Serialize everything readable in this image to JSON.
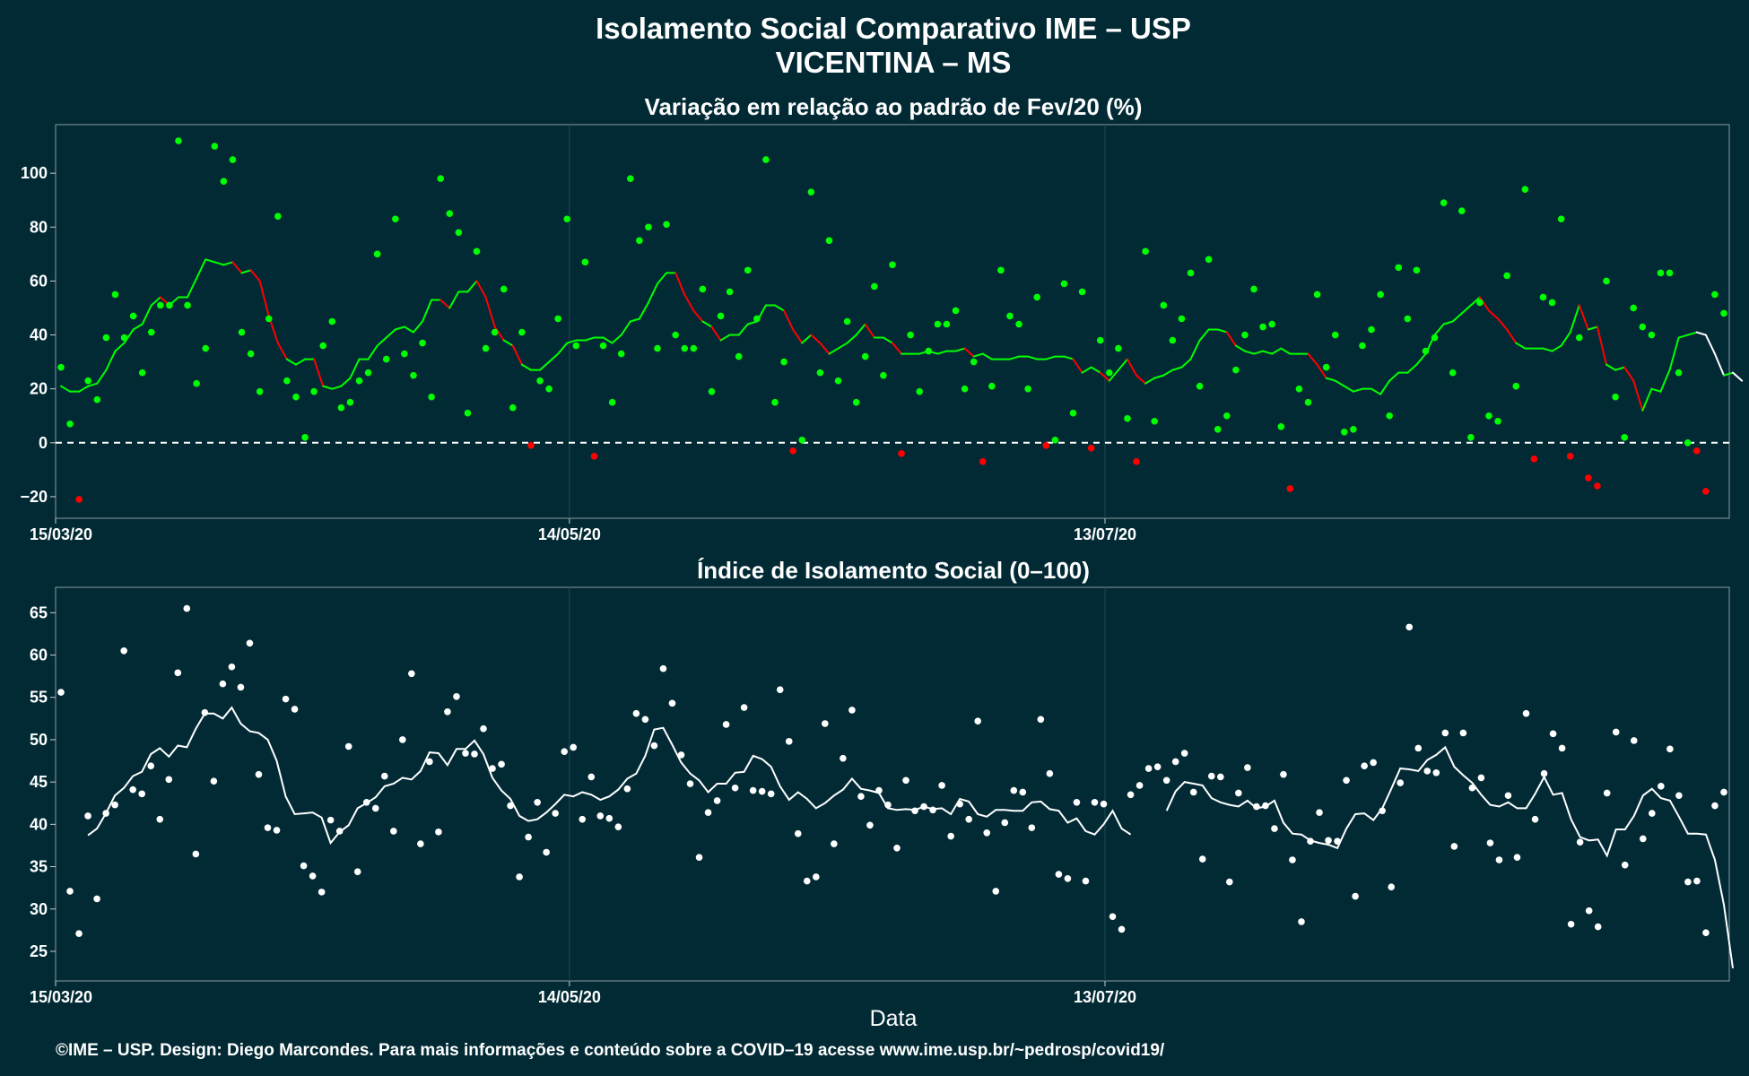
{
  "title_line1": "Isolamento Social Comparativo IME – USP",
  "title_line2": "VICENTINA – MS",
  "xlabel": "Data",
  "footer": "©IME – USP. Design: Diego Marcondes. Para mais informações e conteúdo sobre a COVID–19 acesse www.ime.usp.br/~pedrosp/covid19/",
  "colors": {
    "background": "#022a35",
    "positive": "#00ff00",
    "negative": "#ff0000",
    "index": "#ffffff"
  },
  "chart_data": [
    {
      "type": "scatter",
      "title": "Variação em relação ao padrão de Fev/20 (%)",
      "x_ticks": [
        "15/03/20",
        "14/05/20",
        "13/07/20"
      ],
      "y_ticks": [
        -20,
        0,
        20,
        40,
        60,
        80,
        100
      ],
      "ylim": [
        -28,
        118
      ],
      "x_start": "15/03/20",
      "x_end": "01/09/20",
      "reference_line": 0,
      "grid": true,
      "points": [
        28,
        7,
        -21,
        23,
        16,
        39,
        55,
        39,
        47,
        26,
        41,
        51,
        51,
        112,
        51,
        22,
        35,
        110,
        97,
        105,
        41,
        33,
        19,
        46,
        84,
        23,
        17,
        2,
        19,
        36,
        45,
        13,
        15,
        23,
        26,
        70,
        31,
        83,
        33,
        25,
        37,
        17,
        98,
        85,
        78,
        11,
        71,
        35,
        41,
        57,
        13,
        41,
        -1,
        23,
        20,
        46,
        83,
        36,
        67,
        -5,
        36,
        15,
        33,
        98,
        75,
        80,
        35,
        81,
        40,
        35,
        35,
        57,
        19,
        47,
        56,
        32,
        64,
        46,
        105,
        15,
        30,
        -3,
        1,
        93,
        26,
        75,
        23,
        45,
        15,
        32,
        58,
        25,
        66,
        -4,
        40,
        19,
        34,
        44,
        44,
        49,
        20,
        30,
        -7,
        21,
        64,
        47,
        44,
        20,
        54,
        -1,
        1,
        59,
        11,
        56,
        -2,
        38,
        26,
        35,
        9,
        -7,
        71,
        8,
        51,
        38,
        46,
        63,
        21,
        68,
        5,
        10,
        27,
        40,
        57,
        43,
        44,
        6,
        -17,
        20,
        15,
        55,
        28,
        40,
        4,
        5,
        36,
        42,
        55,
        10,
        65,
        46,
        64,
        34,
        39,
        89,
        26,
        86,
        2,
        52,
        10,
        8,
        62,
        21,
        94,
        -6,
        54,
        52,
        83,
        -5,
        39,
        -13,
        -16,
        60,
        17,
        2,
        50,
        43,
        40,
        63,
        63,
        26,
        0,
        -3,
        -18,
        55,
        48
      ],
      "moving_average": [
        21,
        19,
        19,
        21,
        22,
        27,
        34,
        37,
        42,
        44,
        51,
        54,
        51,
        54,
        54,
        61,
        68,
        67,
        66,
        67,
        63,
        64,
        60,
        47,
        37,
        31,
        29,
        31,
        31,
        21,
        20,
        21,
        24,
        31,
        31,
        36,
        39,
        42,
        43,
        41,
        45,
        53,
        53,
        50,
        56,
        56,
        60,
        54,
        43,
        38,
        36,
        29,
        27,
        27,
        30,
        33,
        37,
        38,
        38,
        39,
        39,
        37,
        40,
        45,
        46,
        52,
        59,
        63,
        63,
        55,
        49,
        45,
        43,
        38,
        40,
        40,
        44,
        45,
        51,
        51,
        49,
        42,
        37,
        40,
        37,
        33,
        35,
        37,
        40,
        44,
        39,
        39,
        37,
        33,
        33,
        33,
        34,
        33,
        34,
        34,
        35,
        32,
        33,
        31,
        31,
        31,
        32,
        32,
        31,
        31,
        32,
        32,
        31,
        26,
        28,
        26,
        23,
        27,
        31,
        25,
        22,
        24,
        25,
        27,
        28,
        31,
        38,
        42,
        42,
        41,
        36,
        34,
        33,
        34,
        33,
        35,
        33,
        33,
        33,
        29,
        24,
        23,
        21,
        19,
        20,
        20,
        18,
        23,
        26,
        26,
        29,
        33,
        40,
        44,
        45,
        48,
        51,
        54,
        49,
        46,
        42,
        37,
        35,
        35,
        35,
        34,
        36,
        41,
        51,
        42,
        43,
        29,
        27,
        28,
        23,
        12,
        20,
        19,
        27,
        39,
        40,
        41,
        40,
        33,
        25,
        26,
        23
      ]
    },
    {
      "type": "scatter",
      "title": "Índice de Isolamento Social (0–100)",
      "x_ticks": [
        "15/03/20",
        "14/05/20",
        "13/07/20"
      ],
      "y_ticks": [
        25,
        30,
        35,
        40,
        45,
        50,
        55,
        60,
        65
      ],
      "ylim": [
        21.5,
        68
      ],
      "x_start": "15/03/20",
      "x_end": "01/09/20",
      "grid": true,
      "points": [
        55.6,
        32.1,
        27.1,
        41.0,
        31.2,
        41.3,
        42.3,
        60.5,
        44.1,
        43.6,
        46.9,
        40.6,
        45.3,
        57.9,
        65.5,
        36.5,
        53.2,
        45.1,
        56.6,
        58.6,
        56.2,
        61.4,
        45.9,
        39.6,
        39.3,
        54.8,
        53.6,
        35.1,
        33.9,
        32.0,
        40.5,
        39.2,
        49.2,
        34.4,
        42.6,
        41.9,
        45.7,
        39.2,
        50.0,
        57.8,
        37.7,
        47.4,
        39.1,
        53.3,
        55.1,
        48.4,
        48.3,
        51.3,
        46.6,
        47.1,
        42.2,
        33.8,
        38.5,
        42.6,
        36.7,
        41.3,
        48.6,
        49.1,
        40.6,
        45.6,
        41.0,
        40.7,
        39.7,
        44.2,
        53.1,
        52.4,
        49.3,
        58.4,
        54.3,
        48.2,
        44.8,
        36.1,
        41.4,
        42.8,
        51.8,
        44.3,
        53.8,
        44.0,
        43.9,
        43.6,
        55.9,
        49.8,
        38.9,
        33.3,
        33.8,
        51.9,
        37.7,
        47.8,
        53.5,
        43.3,
        39.9,
        44.0,
        42.3,
        37.2,
        45.2,
        41.6,
        42.1,
        41.7,
        44.6,
        38.6,
        42.4,
        40.6,
        52.2,
        39.0,
        32.1,
        40.2,
        44.0,
        43.8,
        39.6,
        52.4,
        46.0,
        34.1,
        33.6,
        42.6,
        33.3,
        42.6,
        42.4,
        29.1,
        27.6,
        43.5,
        44.6,
        46.6,
        46.8,
        45.2,
        47.4,
        48.4,
        43.8,
        35.9,
        45.7,
        45.6,
        33.2,
        43.7,
        46.7,
        42.1,
        42.2,
        39.5,
        45.9,
        35.8,
        28.5,
        38.0,
        41.4,
        38.1,
        38.0,
        45.2,
        31.5,
        46.9,
        47.3,
        41.6,
        32.6,
        44.9,
        63.3,
        49.0,
        46.3,
        46.1,
        50.8,
        37.4,
        50.8,
        44.3,
        45.5,
        37.8,
        35.8,
        43.4,
        36.1,
        53.1,
        40.6,
        46.0,
        50.7,
        49.0,
        28.2,
        37.9,
        29.8,
        27.9,
        43.7,
        50.9,
        35.2,
        49.9,
        38.3,
        41.3,
        44.5,
        48.9,
        43.4,
        33.2,
        33.3,
        27.2,
        42.2,
        43.8
      ],
      "moving_average": [
        null,
        null,
        null,
        38.7,
        39.5,
        41.3,
        43.4,
        44.3,
        45.7,
        46.2,
        48.3,
        49.0,
        48.0,
        49.3,
        49.1,
        51.3,
        53.1,
        53.1,
        52.5,
        53.8,
        51.9,
        51.0,
        50.8,
        50.0,
        47.5,
        43.3,
        41.2,
        41.3,
        41.4,
        40.8,
        37.8,
        39.1,
        39.9,
        41.9,
        42.5,
        43.2,
        44.5,
        44.8,
        45.5,
        45.3,
        46.3,
        48.5,
        48.4,
        47.0,
        48.9,
        48.9,
        49.9,
        48.3,
        45.5,
        44.0,
        43.0,
        41.0,
        40.4,
        40.6,
        41.4,
        42.4,
        43.5,
        43.3,
        43.8,
        43.5,
        42.9,
        43.3,
        44.1,
        45.4,
        46.0,
        48.1,
        51.2,
        51.4,
        49.4,
        47.3,
        46.0,
        45.2,
        43.8,
        44.8,
        44.8,
        46.1,
        46.2,
        48.1,
        47.7,
        46.8,
        44.5,
        42.9,
        43.8,
        43.0,
        41.9,
        42.5,
        43.4,
        44.1,
        45.4,
        44.2,
        44.0,
        43.7,
        41.9,
        41.7,
        41.8,
        41.7,
        42.1,
        41.8,
        41.9,
        41.2,
        43.0,
        42.7,
        41.2,
        40.9,
        41.7,
        41.7,
        41.6,
        41.6,
        42.6,
        42.7,
        41.8,
        41.6,
        40.2,
        40.7,
        39.2,
        38.8,
        40.0,
        41.6,
        39.5,
        38.8,
        null,
        null,
        null,
        41.6,
        43.9,
        45.0,
        44.8,
        44.6,
        43.1,
        42.6,
        42.3,
        42.1,
        42.8,
        41.9,
        42.1,
        42.8,
        40.2,
        38.9,
        38.8,
        38.1,
        37.8,
        37.6,
        37.2,
        39.5,
        41.2,
        41.3,
        40.5,
        41.9,
        44.2,
        46.6,
        46.5,
        46.3,
        47.6,
        48.2,
        49.1,
        46.8,
        45.8,
        44.9,
        43.5,
        42.3,
        42.1,
        42.6,
        41.9,
        41.9,
        43.6,
        45.6,
        43.5,
        43.7,
        40.6,
        38.5,
        38.1,
        38.2,
        36.3,
        39.4,
        39.4,
        41.0,
        43.4,
        44.2,
        43.1,
        42.8,
        40.9,
        38.9,
        38.9,
        38.8,
        35.8,
        30.5,
        23.0
      ]
    }
  ]
}
